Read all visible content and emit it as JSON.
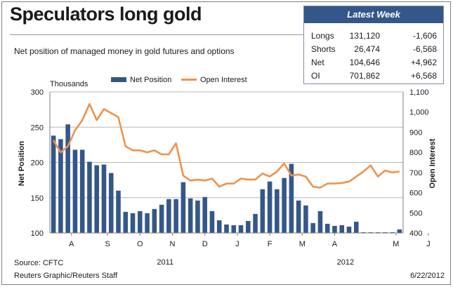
{
  "title": "Speculators long gold",
  "subtitle": "Net position of managed money in gold futures and options",
  "latest_week": {
    "header": "Latest Week",
    "rows": [
      {
        "label": "Longs",
        "value": "131,120",
        "change": "-1,606"
      },
      {
        "label": "Shorts",
        "value": "26,474",
        "change": "-6,568"
      },
      {
        "label": "Net",
        "value": "104,646",
        "change": "+4,962"
      },
      {
        "label": "OI",
        "value": "701,862",
        "change": "+6,568"
      }
    ]
  },
  "source": "Source: CFTC",
  "credit": "Reuters Graphic/Reuters Staff",
  "date": "6/22/2012",
  "colors": {
    "bar": "#34578a",
    "line": "#f0924a",
    "grid": "#b8b8b8",
    "axis": "#7f7f7f"
  },
  "chart_data": {
    "type": "bar",
    "units_label": "Thousands",
    "ylabel_left": "Net Position",
    "ylabel_right": "Open Interest",
    "left_ylim": [
      100,
      300
    ],
    "left_ticks": [
      "100",
      "150",
      "200",
      "250",
      "300"
    ],
    "right_ylim": [
      400,
      1100
    ],
    "right_ticks": [
      "400",
      "500",
      "600",
      "700",
      "800",
      "900",
      "1,000",
      "1,100"
    ],
    "grid": true,
    "legend_position": "top",
    "month_labels": [
      {
        "label": "A",
        "week": 3
      },
      {
        "label": "S",
        "week": 8
      },
      {
        "label": "O",
        "week": 12.5
      },
      {
        "label": "N",
        "week": 17
      },
      {
        "label": "D",
        "week": 21.5
      },
      {
        "label": "J",
        "week": 26
      },
      {
        "label": "F",
        "week": 30.5
      },
      {
        "label": "M",
        "week": 35
      },
      {
        "label": "A",
        "week": 39.5
      },
      {
        "label": "M",
        "week": 48
      },
      {
        "label": "J",
        "week": 52.5
      }
    ],
    "year_labels": [
      {
        "label": "2011",
        "week": 16
      },
      {
        "label": "2012",
        "week": 41
      }
    ],
    "series": [
      {
        "name": "Net Position",
        "type": "bar",
        "axis": "left",
        "values": [
          238,
          233,
          254,
          218,
          218,
          201,
          196,
          197,
          185,
          160,
          130,
          128,
          131,
          128,
          134,
          140,
          148,
          148,
          172,
          149,
          146,
          151,
          131,
          118,
          112,
          111,
          111,
          117,
          127,
          162,
          173,
          162,
          178,
          198,
          146,
          139,
          114,
          131,
          113,
          110,
          111,
          109,
          116,
          100,
          101,
          101,
          101,
          101,
          105
        ]
      },
      {
        "name": "Open Interest",
        "type": "line",
        "axis": "right",
        "values": [
          860,
          800,
          830,
          910,
          960,
          1040,
          960,
          1015,
          995,
          975,
          830,
          810,
          810,
          800,
          810,
          790,
          790,
          845,
          685,
          660,
          665,
          660,
          670,
          630,
          645,
          645,
          670,
          665,
          665,
          695,
          680,
          705,
          745,
          685,
          690,
          680,
          630,
          625,
          645,
          645,
          648,
          655,
          680,
          705,
          735,
          680,
          710,
          700,
          705
        ]
      }
    ]
  }
}
